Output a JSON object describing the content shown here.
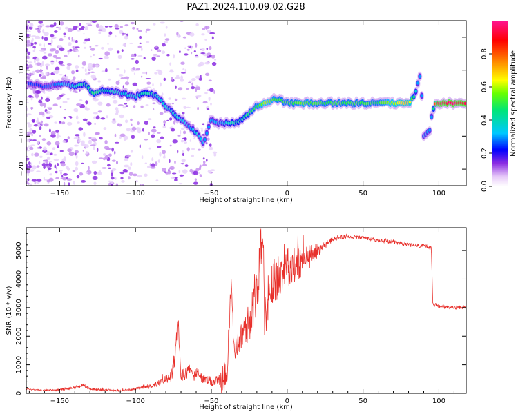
{
  "figure": {
    "title": "PAZ1.2024.110.09.02.G28"
  },
  "chart_data": [
    {
      "type": "heatmap",
      "title": "PAZ1.2024.110.09.02.G28",
      "xlabel": "Height of straight line (km)",
      "ylabel": "Frequency (Hz)",
      "xlim": [
        -172,
        118
      ],
      "ylim": [
        -25,
        25
      ],
      "xticks": [
        -150,
        -100,
        -50,
        0,
        50,
        100
      ],
      "yticks": [
        -20,
        -10,
        0,
        10,
        20
      ],
      "colorbar": {
        "label": "Normalized spectral amplitude",
        "range": [
          0,
          1
        ],
        "ticks": [
          0.0,
          0.2,
          0.4,
          0.6,
          0.8
        ],
        "colormap": [
          "#ffffff",
          "#e6c8f8",
          "#8a2be2",
          "#0000ff",
          "#00c8ff",
          "#00e676",
          "#66ff00",
          "#ffff00",
          "#ff8000",
          "#ff0000",
          "#ff1493"
        ]
      },
      "ridge": {
        "x": [
          -170,
          -160,
          -150,
          -140,
          -134,
          -128,
          -120,
          -110,
          -100,
          -95,
          -90,
          -85,
          -80,
          -75,
          -70,
          -65,
          -60,
          -55,
          -50,
          -45,
          -40,
          -35,
          -30,
          -25,
          -20,
          -15,
          -10,
          -5,
          0,
          5,
          10,
          20,
          40,
          60,
          80,
          84,
          86,
          88,
          90,
          94,
          96,
          98,
          100,
          105,
          110,
          118
        ],
        "y": [
          6,
          5,
          6,
          5,
          6,
          3,
          4,
          3,
          2,
          3,
          3,
          2,
          -1,
          -3,
          -5,
          -7,
          -9,
          -12,
          -5,
          -6,
          -6,
          -6,
          -5,
          -3,
          -1,
          0,
          1,
          1,
          0,
          0,
          0,
          0,
          0,
          0,
          0,
          2,
          6,
          9,
          -10,
          -8,
          -2,
          0,
          0,
          0,
          0,
          0
        ],
        "amplitude": [
          0.25,
          0.25,
          0.3,
          0.35,
          0.4,
          0.45,
          0.4,
          0.35,
          0.35,
          0.4,
          0.4,
          0.35,
          0.35,
          0.35,
          0.35,
          0.3,
          0.35,
          0.3,
          0.3,
          0.3,
          0.35,
          0.4,
          0.4,
          0.45,
          0.5,
          0.6,
          0.55,
          0.5,
          0.5,
          0.5,
          0.55,
          0.5,
          0.5,
          0.5,
          0.7,
          0.4,
          0.3,
          0.3,
          0.3,
          0.3,
          0.3,
          0.85,
          0.95,
          0.95,
          0.95,
          0.95
        ]
      }
    },
    {
      "type": "line",
      "xlabel": "Height of straight line (km)",
      "ylabel": "SNR (10 * v/v)",
      "xlim": [
        -172,
        118
      ],
      "ylim": [
        0,
        5800
      ],
      "xticks": [
        -150,
        -100,
        -50,
        0,
        50,
        100
      ],
      "yticks": [
        0,
        1000,
        2000,
        3000,
        4000,
        5000
      ],
      "color": "#e8302b",
      "series": [
        {
          "x": [
            -172,
            -160,
            -150,
            -140,
            -135,
            -130,
            -120,
            -110,
            -100,
            -90,
            -85,
            -80,
            -75,
            -72,
            -70,
            -65,
            -60,
            -55,
            -50,
            -45,
            -42,
            -40,
            -37,
            -35,
            -30,
            -25,
            -20,
            -16,
            -15,
            -13,
            -10,
            -5,
            0,
            5,
            10,
            15,
            20,
            25,
            30,
            35,
            40,
            50,
            60,
            70,
            80,
            90,
            95,
            96,
            100,
            110,
            118
          ],
          "values": [
            150,
            100,
            120,
            200,
            300,
            150,
            120,
            100,
            150,
            250,
            350,
            500,
            700,
            2500,
            600,
            800,
            700,
            500,
            400,
            400,
            450,
            500,
            3800,
            1500,
            2000,
            2500,
            3500,
            5800,
            2500,
            3200,
            3800,
            4200,
            4500,
            4500,
            4600,
            4800,
            5000,
            5200,
            5400,
            5450,
            5500,
            5450,
            5350,
            5300,
            5200,
            5150,
            5100,
            3100,
            3050,
            3000,
            3000
          ],
          "peak_to_peak": [
            80,
            80,
            90,
            150,
            200,
            120,
            100,
            90,
            120,
            200,
            300,
            450,
            700,
            900,
            600,
            700,
            600,
            500,
            500,
            600,
            1800,
            1500,
            1200,
            1000,
            1500,
            2000,
            2500,
            2000,
            2200,
            2200,
            2400,
            2200,
            2000,
            1800,
            1600,
            1200,
            700,
            350,
            250,
            200,
            200,
            200,
            200,
            200,
            200,
            200,
            200,
            200,
            150,
            150,
            150
          ]
        }
      ]
    }
  ]
}
